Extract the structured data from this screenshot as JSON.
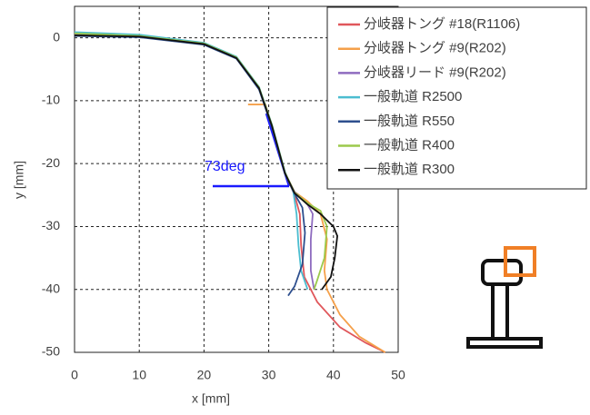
{
  "chart_data": {
    "type": "line",
    "xlabel": "x [mm]",
    "ylabel": "y [mm]",
    "xlim": [
      0,
      50
    ],
    "xticks": [
      0,
      10,
      20,
      30,
      40,
      50
    ],
    "ylim": [
      -50,
      5
    ],
    "yticks": [
      -50,
      -40,
      -30,
      -20,
      -10,
      0
    ],
    "grid": true,
    "legend": "top-right",
    "annotations": [
      {
        "text": "73deg"
      }
    ],
    "series": [
      {
        "name": "分岐器トング #18(R1106)",
        "color": "#e0575b",
        "x": [
          0,
          10,
          20,
          25,
          28.5,
          30.5,
          32.5,
          34,
          34.8,
          35,
          35.5,
          37.5,
          41,
          45,
          48
        ],
        "values": [
          0.6,
          0.2,
          -1,
          -3.2,
          -8,
          -14,
          -21.5,
          -25,
          -28,
          -33,
          -38,
          -42,
          -46,
          -48.5,
          -50
        ]
      },
      {
        "name": "分岐器トング #9(R202)",
        "color": "#f5a04a",
        "x": [
          26.8,
          29.5,
          30.5,
          32.5,
          34,
          36,
          38,
          39,
          38.6,
          39,
          41,
          44,
          48
        ],
        "values": [
          -10.6,
          -10.6,
          -14,
          -21.5,
          -24.5,
          -26,
          -28,
          -32,
          -37,
          -40,
          -44,
          -47.5,
          -50
        ]
      },
      {
        "name": "分岐器リード #9(R202)",
        "color": "#8e6bbf",
        "x": [
          0,
          10,
          20,
          25,
          28.5,
          30.5,
          32.5,
          34,
          36,
          36.8,
          36.5,
          36.5,
          37
        ],
        "values": [
          0.6,
          0.3,
          -1,
          -3.2,
          -8,
          -14,
          -21.5,
          -24.5,
          -26.5,
          -28,
          -32,
          -37,
          -40
        ]
      },
      {
        "name": "一般軌道 R2500",
        "color": "#4bbdd0",
        "x": [
          0,
          10,
          20,
          25,
          28.5,
          30.5,
          32.5,
          33.8,
          34.3,
          34.6,
          35,
          36
        ],
        "values": [
          0.9,
          0.5,
          -0.8,
          -3,
          -7.8,
          -13.8,
          -21.3,
          -24.5,
          -28,
          -33,
          -37,
          -40
        ]
      },
      {
        "name": "一般軌道 R550",
        "color": "#2e4f8e",
        "x": [
          0,
          10,
          20,
          25,
          28.5,
          30.5,
          32.5,
          34,
          35.2,
          35.6,
          35.2,
          34,
          33
        ],
        "values": [
          0.3,
          0.1,
          -1.1,
          -3.3,
          -8.2,
          -14.2,
          -21.6,
          -24.8,
          -27,
          -31,
          -36,
          -39.5,
          -41
        ]
      },
      {
        "name": "一般軌道 R400",
        "color": "#9bc94c",
        "x": [
          0,
          10,
          20,
          25,
          28.5,
          30.5,
          32.5,
          34,
          36,
          38,
          39,
          38.6,
          37.5,
          37
        ],
        "values": [
          0.7,
          0.3,
          -0.9,
          -3.1,
          -7.9,
          -13.9,
          -21.4,
          -24.6,
          -26.3,
          -27.5,
          -30,
          -35,
          -38.5,
          -40
        ]
      },
      {
        "name": "一般軌道 R300",
        "color": "#111111",
        "x": [
          0,
          10,
          20,
          25,
          28.5,
          30.5,
          32.5,
          34,
          36,
          38,
          40,
          40.6,
          40.2,
          39.6,
          38.2
        ],
        "values": [
          0.4,
          0.2,
          -1,
          -3.2,
          -8,
          -14,
          -21.5,
          -24.7,
          -26.5,
          -28,
          -30,
          -31.5,
          -35,
          -38,
          -40
        ]
      }
    ]
  }
}
